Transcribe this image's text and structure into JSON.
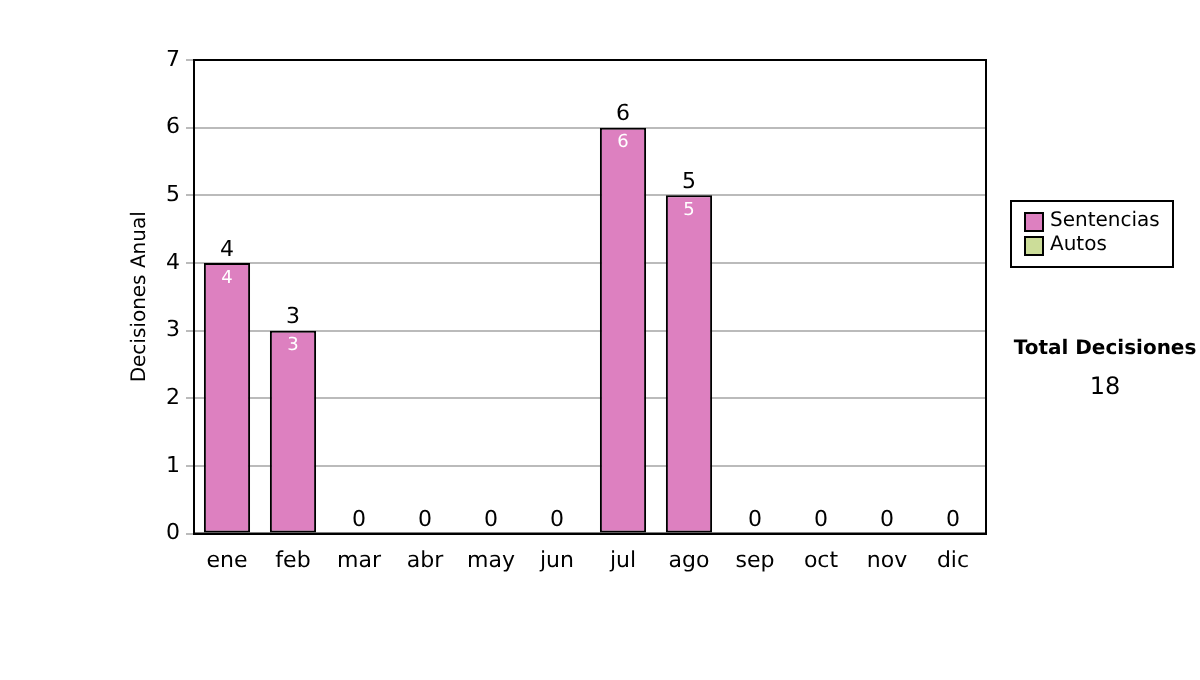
{
  "chart_data": {
    "type": "bar",
    "stacked": true,
    "ylabel": "Decisiones Anual",
    "categories": [
      "ene",
      "feb",
      "mar",
      "abr",
      "may",
      "jun",
      "jul",
      "ago",
      "sep",
      "oct",
      "nov",
      "dic"
    ],
    "series": [
      {
        "name": "Sentencias",
        "color": "#dd80c0",
        "values": [
          4,
          3,
          0,
          0,
          0,
          0,
          6,
          5,
          0,
          0,
          0,
          0
        ],
        "value_labels": [
          "4",
          "3",
          null,
          null,
          null,
          null,
          "6",
          "5",
          null,
          null,
          null,
          null
        ]
      },
      {
        "name": "Autos",
        "color": "#ccdd99",
        "values": [
          0,
          0,
          0,
          0,
          0,
          0,
          0,
          0,
          0,
          0,
          0,
          0
        ]
      }
    ],
    "totals": [
      "4",
      "3",
      "0",
      "0",
      "0",
      "0",
      "6",
      "5",
      "0",
      "0",
      "0",
      "0"
    ],
    "ylim": [
      0,
      7
    ],
    "yticks": [
      0,
      1,
      2,
      3,
      4,
      5,
      6,
      7
    ],
    "grid": "y",
    "legend": "right",
    "annotations": [
      "Total Decisiones",
      "18"
    ]
  }
}
